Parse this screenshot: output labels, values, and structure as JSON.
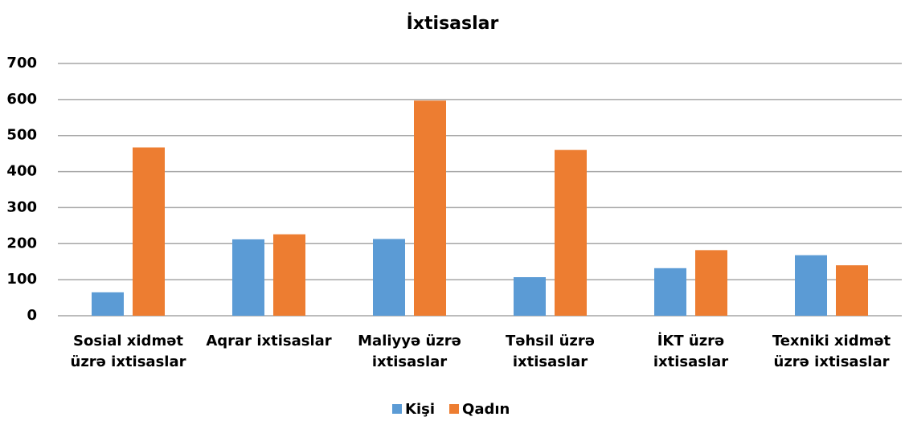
{
  "chart_data": {
    "type": "bar",
    "title": "İxtisaslar",
    "categories": [
      "Sosial xidmət üzrə ixtisaslar",
      "Aqrar ixtisaslar",
      "Maliyyə üzrə ixtisaslar",
      "Təhsil üzrə ixtisaslar",
      "İKT üzrə ixtisaslar",
      "Texniki xidmət üzrə ixtisaslar"
    ],
    "series": [
      {
        "name": "Kişi",
        "color": "#5b9bd5",
        "values": [
          65,
          212,
          213,
          107,
          132,
          168
        ]
      },
      {
        "name": "Qadın",
        "color": "#ed7d31",
        "values": [
          467,
          226,
          597,
          460,
          182,
          140
        ]
      }
    ],
    "ylim": [
      0,
      700
    ],
    "yticks": [
      0,
      100,
      200,
      300,
      400,
      500,
      600,
      700
    ],
    "grid": true,
    "legend": "bottom"
  }
}
